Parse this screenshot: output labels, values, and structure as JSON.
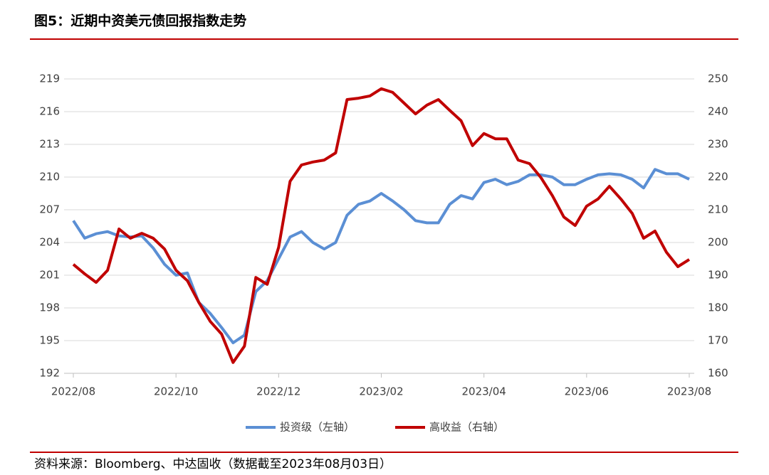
{
  "chart_data": {
    "type": "line",
    "title": "图5：近期中资美元债回报指数走势",
    "source": "资料来源：Bloomberg、中达固收（数据截至2023年08月03日）",
    "categories": [
      "2022/08",
      null,
      null,
      null,
      null,
      null,
      null,
      null,
      null,
      "2022/10",
      null,
      null,
      null,
      null,
      null,
      null,
      null,
      null,
      "2022/12",
      null,
      null,
      null,
      null,
      null,
      null,
      null,
      null,
      "2023/02",
      null,
      null,
      null,
      null,
      null,
      null,
      null,
      null,
      "2023/04",
      null,
      null,
      null,
      null,
      null,
      null,
      null,
      null,
      "2023/06",
      null,
      null,
      null,
      null,
      null,
      null,
      null,
      null,
      "2023/08"
    ],
    "series": [
      {
        "name": "投资级（左轴）",
        "color": "#5b8fd4",
        "axis": "y",
        "values": [
          206.0,
          204.4,
          204.8,
          205.0,
          204.6,
          204.5,
          204.6,
          203.5,
          202.0,
          201.0,
          201.2,
          198.5,
          197.5,
          196.2,
          194.8,
          195.5,
          199.5,
          200.5,
          202.5,
          204.5,
          205.0,
          204.0,
          203.4,
          204.0,
          206.5,
          207.5,
          207.8,
          208.5,
          207.8,
          207.0,
          206.0,
          205.8,
          205.8,
          207.5,
          208.3,
          208.0,
          209.5,
          209.8,
          209.3,
          209.6,
          210.2,
          210.2,
          210.0,
          209.3,
          209.3,
          209.8,
          210.2,
          210.3,
          210.2,
          209.8,
          209.0,
          210.7,
          210.3,
          210.3,
          209.8
        ]
      },
      {
        "name": "高收益（右轴）",
        "color": "#c00000",
        "axis": "y2",
        "values": [
          193.3,
          190.4,
          187.8,
          191.5,
          204.1,
          201.3,
          202.8,
          201.3,
          198.0,
          191.5,
          188.3,
          181.7,
          175.9,
          172.0,
          163.3,
          168.3,
          189.3,
          187.2,
          198.5,
          218.7,
          223.7,
          224.6,
          225.2,
          227.4,
          243.7,
          244.1,
          244.8,
          247.0,
          245.9,
          242.6,
          239.3,
          242.0,
          243.7,
          240.4,
          237.2,
          229.6,
          233.3,
          231.7,
          231.7,
          225.2,
          224.1,
          219.8,
          214.3,
          207.8,
          205.2,
          211.1,
          213.3,
          217.2,
          213.3,
          208.9,
          201.3,
          203.5,
          197.0,
          192.6,
          194.8
        ]
      }
    ],
    "ylim": [
      192,
      219
    ],
    "yticks": [
      192,
      195,
      198,
      201,
      204,
      207,
      210,
      213,
      216,
      219
    ],
    "y2lim": [
      160,
      250
    ],
    "y2ticks": [
      160,
      170,
      180,
      190,
      200,
      210,
      220,
      230,
      240,
      250
    ],
    "grid": true,
    "legend": "bottom"
  }
}
